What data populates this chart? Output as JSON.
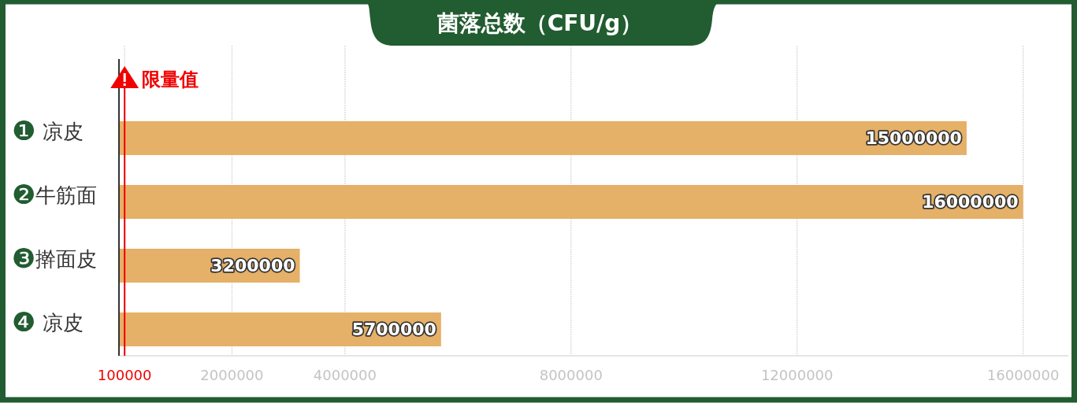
{
  "chart_data": {
    "type": "bar",
    "orientation": "horizontal",
    "title": "菌落总数（CFU/g）",
    "categories": [
      "❶ 凉皮",
      "❷牛筋面",
      "❸擀面皮",
      "❹ 凉皮"
    ],
    "series": [
      {
        "color": "#e5b067",
        "values": [
          15000000,
          16000000,
          3200000,
          5700000
        ]
      }
    ],
    "xlim": [
      0,
      16800000
    ],
    "xticks": [
      100000,
      2000000,
      4000000,
      8000000,
      12000000,
      16000000
    ],
    "grid": "x",
    "data_labels": true,
    "ref_lines": [
      {
        "axis": "x",
        "value": 100000,
        "label": "限量值",
        "color": "#f00000"
      }
    ]
  }
}
